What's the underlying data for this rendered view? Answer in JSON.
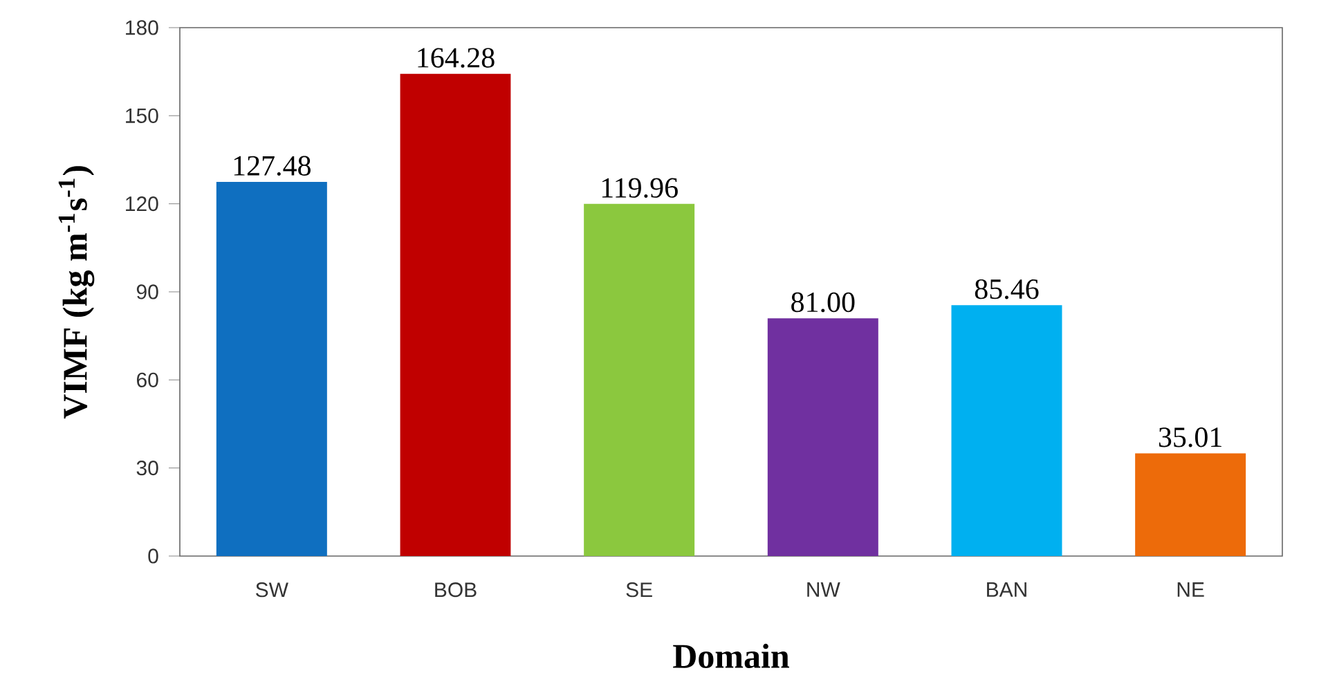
{
  "chart_data": {
    "type": "bar",
    "xlabel": "Domain",
    "ylabel": "VIMF (kg m$^{-1}$s$^{-1}$)",
    "categories": [
      "SW",
      "BOB",
      "SE",
      "NW",
      "BAN",
      "NE"
    ],
    "values": [
      127.48,
      164.28,
      119.96,
      81.0,
      85.46,
      35.01
    ],
    "value_labels": [
      "127.48",
      "164.28",
      "119.96",
      "81.00",
      "85.46",
      "35.01"
    ],
    "colors": [
      "#0f6fc0",
      "#c00000",
      "#8bc83e",
      "#7030a0",
      "#00b0f0",
      "#ed6b0a"
    ],
    "ylim": [
      0,
      180
    ],
    "yticks": [
      0,
      30,
      60,
      90,
      120,
      150,
      180
    ],
    "grid": false
  }
}
